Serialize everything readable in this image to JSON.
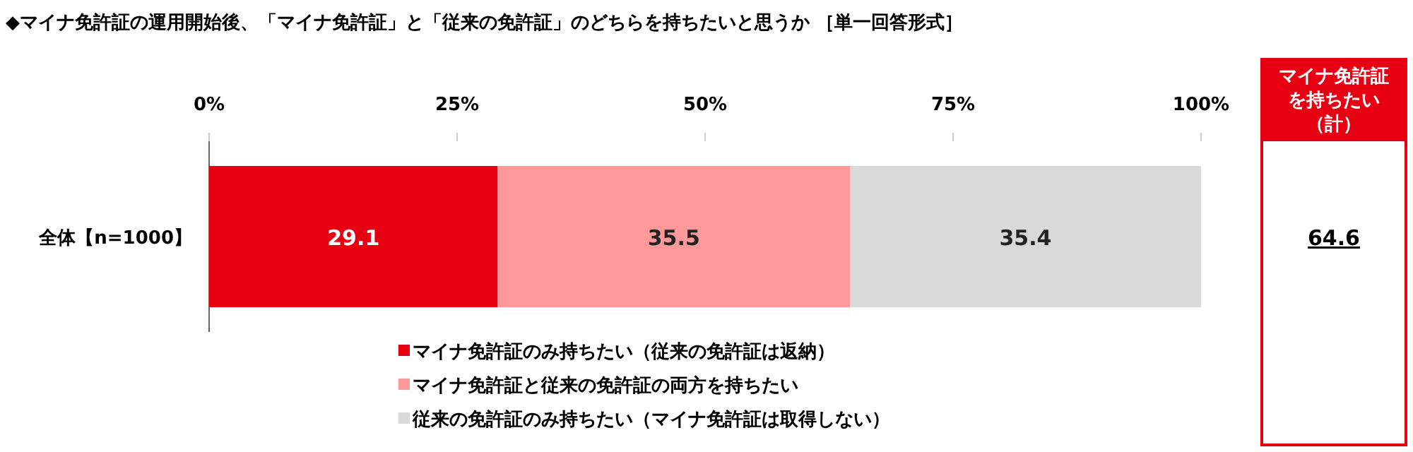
{
  "chart_data": {
    "type": "bar",
    "orientation": "horizontal",
    "stacked": true,
    "title": "◆マイナ免許証の運用開始後、「マイナ免許証」と「従来の免許証」のどちらを持ちたいと思うか ［単一回答形式］",
    "categories": [
      "全体【n=1000】"
    ],
    "series": [
      {
        "name": "マイナ免許証のみ持ちたい（従来の免許証は返納）",
        "color": "#e60012",
        "values": [
          29.1
        ]
      },
      {
        "name": "マイナ免許証と従来の免許証の両方を持ちたい",
        "color": "#ff9999",
        "values": [
          35.5
        ]
      },
      {
        "name": "従来の免許証のみ持ちたい（マイナ免許証は取得しない）",
        "color": "#d9d9d9",
        "values": [
          35.4
        ]
      }
    ],
    "xlim": [
      0,
      100
    ],
    "xticks": [
      {
        "value": 0,
        "label": "0%"
      },
      {
        "value": 25,
        "label": "25%"
      },
      {
        "value": 50,
        "label": "50%"
      },
      {
        "value": 75,
        "label": "75%"
      },
      {
        "value": 100,
        "label": "100%"
      }
    ],
    "data_labels": true,
    "legend": "bottom",
    "annotations": [
      "マイナ免許証を持ちたい（計）",
      "64.6"
    ]
  }
}
